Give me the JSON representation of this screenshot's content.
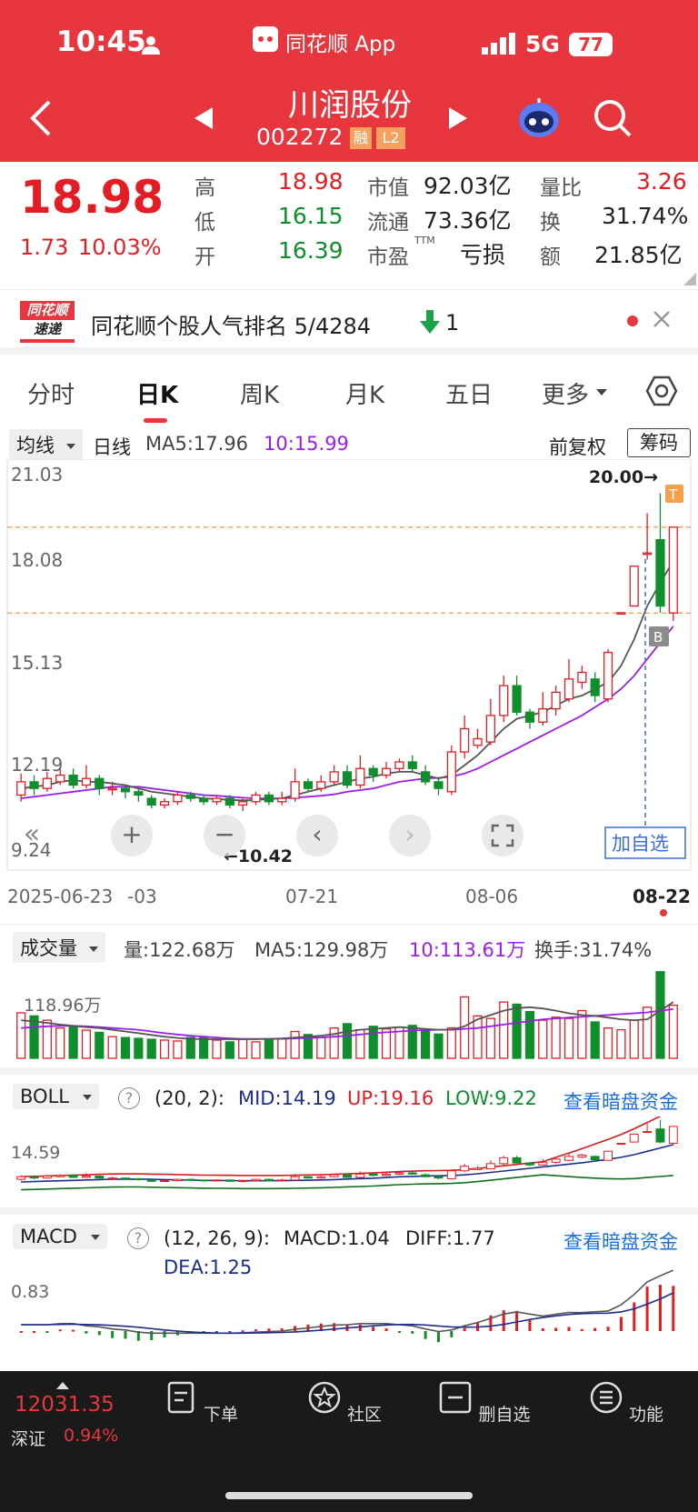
{
  "status": {
    "time": "10:45",
    "app_label": "同花顺 App",
    "network": "5G",
    "battery": "77"
  },
  "header": {
    "stock_name": "川润股份",
    "stock_code": "002272",
    "badge_rong": "融",
    "badge_l2": "L2"
  },
  "quote": {
    "price": "18.98",
    "change": "1.73",
    "change_pct": "10.03%",
    "high_label": "高",
    "high": "18.98",
    "low_label": "低",
    "low": "16.15",
    "open_label": "开",
    "open": "16.39",
    "mktcap_label": "市值",
    "mktcap": "92.03亿",
    "float_label": "流通",
    "float": "73.36亿",
    "pe_label": "市盈",
    "pe_sup": "TTM",
    "pe": "亏损",
    "volratio_label": "量比",
    "volratio": "3.26",
    "turnover_label": "换",
    "turnover": "31.74%",
    "amount_label": "额",
    "amount": "21.85亿"
  },
  "announcement": {
    "brand_top": "同花顺",
    "brand_bottom": "速递",
    "text": "同花顺个股人气排名 5/4284",
    "rank_change": "1"
  },
  "tabs": [
    {
      "label": "分时"
    },
    {
      "label": "日K"
    },
    {
      "label": "周K"
    },
    {
      "label": "月K"
    },
    {
      "label": "五日"
    },
    {
      "label": "更多"
    }
  ],
  "kline": {
    "ma_select": "均线",
    "period": "日线",
    "ma5": "MA5:17.96",
    "ma10": "10:15.99",
    "adjust": "前复权",
    "chip_button": "筹码",
    "y_ticks": [
      "21.03",
      "18.08",
      "15.13",
      "12.19",
      "9.24"
    ],
    "dates": [
      "2025-06-23",
      "-03",
      "07-21",
      "08-06",
      "08-22"
    ],
    "max_label": "20.00→",
    "min_label": "←10.42",
    "t_marker": "T",
    "b_marker": "B",
    "add_watch": "加自选"
  },
  "volume": {
    "select": "成交量",
    "vol": "量:122.68万",
    "ma5": "MA5:129.98万",
    "ma10": "10:113.61万",
    "turnover": "换手:31.74%",
    "y_tick": "118.96万"
  },
  "boll": {
    "select": "BOLL",
    "params": "(20, 2):",
    "mid": "MID:14.19",
    "up": "UP:19.16",
    "low": "LOW:9.22",
    "link": "查看暗盘资金",
    "y_tick": "14.59"
  },
  "macd": {
    "select": "MACD",
    "params": "(12, 26, 9):",
    "macd": "MACD:1.04",
    "diff": "DIFF:1.77",
    "dea": "DEA:1.25",
    "link": "查看暗盘资金",
    "y_tick": "0.83"
  },
  "bottom": {
    "index_value": "12031.35",
    "index_name": "深证",
    "index_pct": "0.94%",
    "nav": [
      {
        "label": "下单"
      },
      {
        "label": "社区"
      },
      {
        "label": "删自选"
      },
      {
        "label": "功能"
      }
    ]
  },
  "colors": {
    "header_red": "#e8363e",
    "up_red": "#e41c24",
    "down_green": "#0e8f2c",
    "ma10_purple": "#9b1fe8",
    "link_blue": "#1a6fd8"
  },
  "chart_data": {
    "type": "candlestick",
    "x_labels": [
      "2025-06-23",
      "07-03",
      "07-21",
      "08-06",
      "08-22"
    ],
    "ylim": [
      9.24,
      21.03
    ],
    "max_marker": 20.0,
    "min_marker": 10.42,
    "candles": [
      [
        10.9,
        11.3,
        11.55,
        10.7
      ],
      [
        11.3,
        11.1,
        11.5,
        10.9
      ],
      [
        11.1,
        11.4,
        11.6,
        11.0
      ],
      [
        11.3,
        11.5,
        11.7,
        11.2
      ],
      [
        11.5,
        11.2,
        11.7,
        11.1
      ],
      [
        11.2,
        11.4,
        11.8,
        11.1
      ],
      [
        11.4,
        11.1,
        11.5,
        10.9
      ],
      [
        11.1,
        11.1,
        11.3,
        10.9
      ],
      [
        11.1,
        11.0,
        11.2,
        10.8
      ],
      [
        11.0,
        10.9,
        11.1,
        10.7
      ],
      [
        10.8,
        10.6,
        10.9,
        10.5
      ],
      [
        10.6,
        10.7,
        10.8,
        10.5
      ],
      [
        10.7,
        10.9,
        11.0,
        10.6
      ],
      [
        10.9,
        10.8,
        11.0,
        10.7
      ],
      [
        10.8,
        10.7,
        10.9,
        10.6
      ],
      [
        10.7,
        10.8,
        10.9,
        10.6
      ],
      [
        10.8,
        10.6,
        10.9,
        10.5
      ],
      [
        10.6,
        10.7,
        10.8,
        10.42
      ],
      [
        10.7,
        10.9,
        11.0,
        10.6
      ],
      [
        10.9,
        10.7,
        11.0,
        10.6
      ],
      [
        10.7,
        10.8,
        11.0,
        10.6
      ],
      [
        10.8,
        11.3,
        11.7,
        10.7
      ],
      [
        11.3,
        11.1,
        11.4,
        11.0
      ],
      [
        11.1,
        11.3,
        11.5,
        11.0
      ],
      [
        11.3,
        11.6,
        11.8,
        11.2
      ],
      [
        11.6,
        11.2,
        11.8,
        11.1
      ],
      [
        11.2,
        11.7,
        12.1,
        11.1
      ],
      [
        11.7,
        11.5,
        11.8,
        11.3
      ],
      [
        11.5,
        11.7,
        11.9,
        11.4
      ],
      [
        11.7,
        11.9,
        12.0,
        11.6
      ],
      [
        11.9,
        11.7,
        12.1,
        11.6
      ],
      [
        11.6,
        11.3,
        11.8,
        11.2
      ],
      [
        11.3,
        11.1,
        11.4,
        10.9
      ],
      [
        11.0,
        12.2,
        12.4,
        10.9
      ],
      [
        12.2,
        12.9,
        13.3,
        12.0
      ],
      [
        12.4,
        12.6,
        12.9,
        12.3
      ],
      [
        12.5,
        13.3,
        13.8,
        12.4
      ],
      [
        13.3,
        14.2,
        14.5,
        13.1
      ],
      [
        14.2,
        13.4,
        14.5,
        13.3
      ],
      [
        13.4,
        13.1,
        13.5,
        12.9
      ],
      [
        13.1,
        13.5,
        14.0,
        13.0
      ],
      [
        13.5,
        14.0,
        14.2,
        13.3
      ],
      [
        13.8,
        14.4,
        15.0,
        13.7
      ],
      [
        14.3,
        14.6,
        14.8,
        14.1
      ],
      [
        14.4,
        13.9,
        14.6,
        13.7
      ],
      [
        13.8,
        15.2,
        15.3,
        13.7
      ],
      [
        16.4,
        16.4,
        16.4,
        16.4
      ],
      [
        16.6,
        17.8,
        17.8,
        16.6
      ],
      [
        18.2,
        18.2,
        19.4,
        18.0
      ],
      [
        18.6,
        16.6,
        20.0,
        16.4
      ],
      [
        16.39,
        18.98,
        18.98,
        16.15
      ]
    ],
    "ma5": [
      11.1,
      11.15,
      11.2,
      11.3,
      11.35,
      11.3,
      11.3,
      11.25,
      11.2,
      11.1,
      11.0,
      10.95,
      10.9,
      10.85,
      10.8,
      10.78,
      10.75,
      10.74,
      10.75,
      10.78,
      10.8,
      10.9,
      11.0,
      11.1,
      11.2,
      11.3,
      11.4,
      11.45,
      11.55,
      11.6,
      11.6,
      11.5,
      11.4,
      11.5,
      11.8,
      12.1,
      12.5,
      12.9,
      13.2,
      13.3,
      13.4,
      13.6,
      13.8,
      13.9,
      14.1,
      14.3,
      14.8,
      15.6,
      16.6,
      17.3,
      17.96
    ],
    "ma10": [
      10.8,
      10.85,
      10.9,
      10.95,
      11.0,
      11.05,
      11.1,
      11.15,
      11.15,
      11.15,
      11.1,
      11.05,
      11.0,
      10.95,
      10.9,
      10.88,
      10.85,
      10.82,
      10.8,
      10.8,
      10.8,
      10.82,
      10.85,
      10.88,
      10.92,
      11.0,
      11.05,
      11.1,
      11.2,
      11.3,
      11.35,
      11.4,
      11.42,
      11.45,
      11.55,
      11.7,
      11.9,
      12.1,
      12.3,
      12.5,
      12.7,
      12.9,
      13.1,
      13.3,
      13.55,
      13.8,
      14.1,
      14.5,
      15.0,
      15.5,
      15.99
    ],
    "volume": [
      105,
      98,
      88,
      70,
      72,
      65,
      60,
      50,
      48,
      46,
      44,
      42,
      40,
      48,
      50,
      42,
      38,
      44,
      38,
      42,
      45,
      62,
      55,
      48,
      70,
      80,
      66,
      74,
      68,
      72,
      76,
      64,
      56,
      70,
      142,
      98,
      92,
      130,
      125,
      108,
      88,
      95,
      92,
      110,
      84,
      70,
      66,
      88,
      118,
      200,
      122.68
    ],
    "vol_ma5": [
      88,
      85,
      82,
      78,
      75,
      72,
      70,
      66,
      62,
      58,
      54,
      50,
      47,
      45,
      44,
      44,
      44,
      44,
      44,
      45,
      46,
      48,
      50,
      52,
      56,
      62,
      66,
      68,
      70,
      72,
      70,
      68,
      66,
      66,
      74,
      90,
      100,
      110,
      116,
      118,
      115,
      110,
      104,
      100,
      98,
      94,
      90,
      88,
      90,
      110,
      129.98
    ],
    "vol_ma10": [
      70,
      72,
      74,
      75,
      75,
      74,
      72,
      70,
      68,
      66,
      62,
      58,
      55,
      52,
      50,
      48,
      46,
      45,
      45,
      45,
      45,
      46,
      47,
      48,
      50,
      52,
      55,
      58,
      60,
      62,
      64,
      65,
      66,
      66,
      68,
      70,
      74,
      78,
      82,
      86,
      90,
      92,
      94,
      96,
      98,
      100,
      102,
      104,
      106,
      110,
      113.61
    ],
    "boll": {
      "mid": 14.19,
      "up": 19.16,
      "low": 9.22
    },
    "macd": {
      "macd": 1.04,
      "diff": 1.77,
      "dea": 1.25
    }
  }
}
